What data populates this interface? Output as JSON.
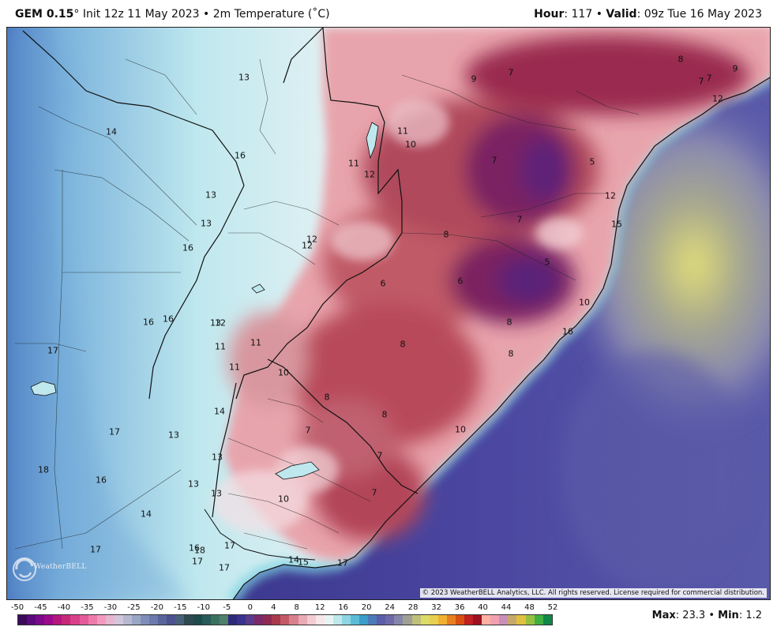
{
  "header": {
    "model": "GEM 0.15",
    "degree": "°",
    "init_text": " Init 12z 11 May 2023",
    "separator": " • ",
    "field": "2m Temperature (˚C)",
    "hour_label": "Hour",
    "hour_value": ": 117",
    "valid_label": "Valid",
    "valid_value": ": 09z Tue 16 May 2023"
  },
  "map": {
    "logo_text": "WeatherBELL",
    "copyright": "© 2023 WeatherBELL Analytics, LLC. All rights reserved. License required for commercial distribution.",
    "labels": [
      {
        "text": "13"
      },
      {
        "text": "14"
      },
      {
        "text": "16"
      },
      {
        "text": "13"
      },
      {
        "text": "13"
      },
      {
        "text": "16"
      },
      {
        "text": "16"
      },
      {
        "text": "16"
      },
      {
        "text": "13"
      },
      {
        "text": "11"
      },
      {
        "text": "11"
      },
      {
        "text": "11"
      },
      {
        "text": "17"
      },
      {
        "text": "17"
      },
      {
        "text": "13"
      },
      {
        "text": "18"
      },
      {
        "text": "16"
      },
      {
        "text": "13"
      },
      {
        "text": "13"
      },
      {
        "text": "14"
      },
      {
        "text": "17"
      },
      {
        "text": "14"
      },
      {
        "text": "13"
      },
      {
        "text": "10"
      },
      {
        "text": "8"
      },
      {
        "text": "8"
      },
      {
        "text": "7"
      },
      {
        "text": "7"
      },
      {
        "text": "7"
      },
      {
        "text": "10"
      },
      {
        "text": "10"
      },
      {
        "text": "16"
      },
      {
        "text": "18"
      },
      {
        "text": "17"
      },
      {
        "text": "17"
      },
      {
        "text": "17"
      },
      {
        "text": "14"
      },
      {
        "text": "15"
      },
      {
        "text": "17"
      },
      {
        "text": "9"
      },
      {
        "text": "7"
      },
      {
        "text": "8"
      },
      {
        "text": "7"
      },
      {
        "text": "9"
      },
      {
        "text": "7"
      },
      {
        "text": "11"
      },
      {
        "text": "10"
      },
      {
        "text": "11"
      },
      {
        "text": "12"
      },
      {
        "text": "7"
      },
      {
        "text": "5"
      },
      {
        "text": "12"
      },
      {
        "text": "12"
      },
      {
        "text": "12"
      },
      {
        "text": "8"
      },
      {
        "text": "7"
      },
      {
        "text": "15"
      },
      {
        "text": "6"
      },
      {
        "text": "6"
      },
      {
        "text": "5"
      },
      {
        "text": "10"
      },
      {
        "text": "8"
      },
      {
        "text": "8"
      },
      {
        "text": "8"
      },
      {
        "text": "16"
      },
      {
        "text": "12"
      },
      {
        "text": "12"
      }
    ]
  },
  "colorbar": {
    "ticks": [
      "-50",
      "-45",
      "-40",
      "-35",
      "-30",
      "-25",
      "-20",
      "-15",
      "-10",
      "-5",
      "0",
      "4",
      "8",
      "12",
      "16",
      "20",
      "24",
      "28",
      "32",
      "36",
      "40",
      "44",
      "48",
      "52"
    ],
    "colors": [
      "#3c0a5a",
      "#5a0a7a",
      "#7a0a8a",
      "#9a0a8a",
      "#b4167e",
      "#c8287a",
      "#d8408a",
      "#e45a9a",
      "#ec7aaa",
      "#f29ac0",
      "#e6b6d0",
      "#d2c6dc",
      "#b6b8d0",
      "#9aa6c4",
      "#7e8eb8",
      "#6a7aac",
      "#5a649c",
      "#4c528e",
      "#4a6078",
      "#2e4a50",
      "#1e4a4a",
      "#285a5a",
      "#3a7060",
      "#50806a",
      "#2e2a7a",
      "#38348c",
      "#5a3a8a",
      "#7a2a6a",
      "#8e2a52",
      "#a83a4c",
      "#c25a66",
      "#d8808c",
      "#e8aab4",
      "#f2ccd2",
      "#f8e6ea",
      "#e8f4f4",
      "#bfe8ec",
      "#8ed6e2",
      "#5cbcd8",
      "#3a9ec8",
      "#4a7ab8",
      "#5a5ea8",
      "#6e6aa8",
      "#8686aa",
      "#a0a096",
      "#c0c07a",
      "#dcdc66",
      "#e8d050",
      "#f0b030",
      "#e88020",
      "#d85010",
      "#c02020",
      "#9c1020",
      "#ffb0a0",
      "#f0a0b0",
      "#c890b8",
      "#c8a86a",
      "#e0c040",
      "#98c040",
      "#40b040",
      "#108848"
    ],
    "max_label": "Max",
    "max_value": ": 23.3",
    "min_sep": " • ",
    "min_label": "Min",
    "min_value": ": 1.2"
  }
}
